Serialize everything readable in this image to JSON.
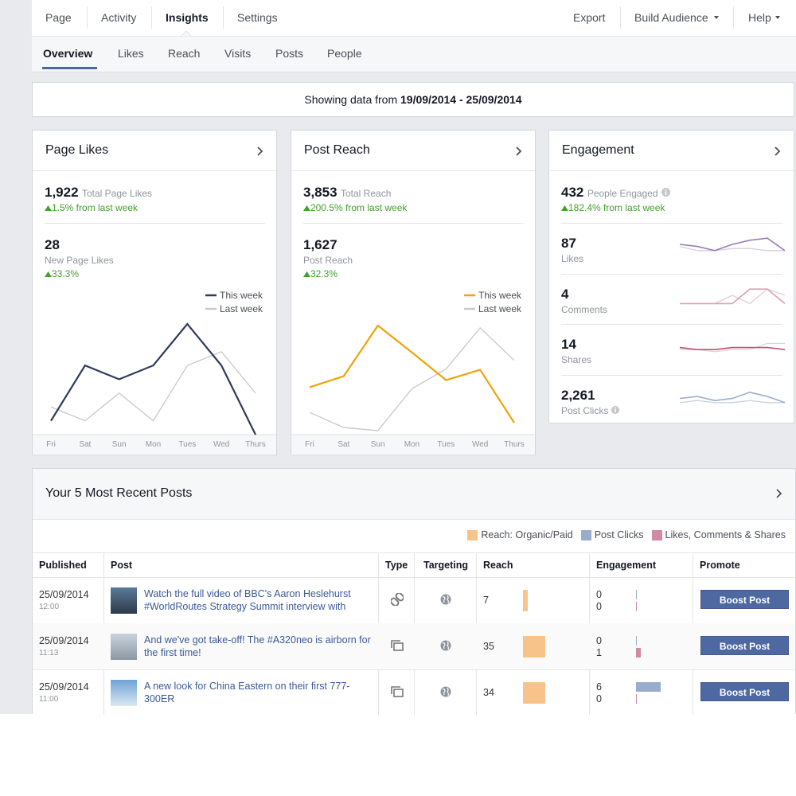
{
  "nav": {
    "tabs": [
      "Page",
      "Activity",
      "Insights",
      "Settings"
    ],
    "actions": [
      "Export",
      "Build Audience",
      "Help"
    ]
  },
  "subnav": {
    "tabs": [
      "Overview",
      "Likes",
      "Reach",
      "Visits",
      "Posts",
      "People"
    ]
  },
  "date_range": {
    "label": "Showing data from",
    "range": "19/09/2014 - 25/09/2014"
  },
  "page_likes": {
    "title": "Page Likes",
    "total": "1,922",
    "total_label": "Total Page Likes",
    "total_change": "1.5% from last week",
    "new": "28",
    "new_label": "New Page Likes",
    "new_change": "33.3%",
    "chart_data": {
      "type": "line",
      "categories": [
        "Fri",
        "Sat",
        "Sun",
        "Mon",
        "Tues",
        "Wed",
        "Thurs"
      ],
      "series": [
        {
          "name": "This week",
          "color": "#2f3b5c",
          "values": [
            1,
            5,
            4,
            5,
            8,
            5,
            0
          ]
        },
        {
          "name": "Last week",
          "color": "#c8c8c8",
          "values": [
            2,
            1,
            3,
            1,
            5,
            6,
            3
          ]
        }
      ],
      "ylim": [
        0,
        8
      ]
    }
  },
  "post_reach": {
    "title": "Post Reach",
    "total": "3,853",
    "total_label": "Total Reach",
    "total_change": "200.5% from last week",
    "new": "1,627",
    "new_label": "Post Reach",
    "new_change": "32.3%",
    "chart_data": {
      "type": "line",
      "categories": [
        "Fri",
        "Sat",
        "Sun",
        "Mon",
        "Tues",
        "Wed",
        "Thurs"
      ],
      "series": [
        {
          "name": "This week",
          "color": "#f0a30a",
          "values": [
            180,
            222,
            414,
            312,
            207,
            246,
            45
          ]
        },
        {
          "name": "Last week",
          "color": "#c8c8c8",
          "values": [
            84,
            27,
            15,
            174,
            249,
            405,
            282
          ]
        }
      ],
      "ylim": [
        0,
        420
      ]
    }
  },
  "engagement": {
    "title": "Engagement",
    "total": "432",
    "total_label": "People Engaged",
    "total_change": "182.4% from last week",
    "metrics": [
      {
        "value": "87",
        "label": "Likes",
        "chart_data": {
          "type": "line",
          "ylim": [
            0,
            10
          ],
          "series": [
            {
              "color": "#9b7bb8",
              "values": [
                5,
                4,
                2,
                5,
                7,
                8,
                2
              ]
            },
            {
              "color": "#d8cde4",
              "values": [
                4,
                2,
                2,
                3,
                3,
                2,
                2
              ]
            }
          ]
        }
      },
      {
        "value": "4",
        "label": "Comments",
        "chart_data": {
          "type": "line",
          "ylim": [
            0,
            10
          ],
          "series": [
            {
              "color": "#d9a0b6",
              "values": [
                1,
                1,
                1,
                1,
                8,
                8,
                1
              ]
            },
            {
              "color": "#ebcad6",
              "values": [
                1,
                1,
                1,
                5,
                1,
                8,
                5
              ]
            }
          ]
        }
      },
      {
        "value": "14",
        "label": "Shares",
        "chart_data": {
          "type": "line",
          "ylim": [
            0,
            10
          ],
          "series": [
            {
              "color": "#c0506e",
              "values": [
                4,
                3,
                3,
                4,
                4,
                4,
                3
              ]
            },
            {
              "color": "#d8d8d8",
              "values": [
                3,
                3,
                2,
                3,
                3,
                6,
                6
              ]
            }
          ]
        }
      },
      {
        "value": "2,261",
        "label": "Post Clicks",
        "chart_data": {
          "type": "line",
          "ylim": [
            0,
            10
          ],
          "series": [
            {
              "color": "#9aaccc",
              "values": [
                4,
                5,
                3,
                4,
                7,
                5,
                2
              ]
            },
            {
              "color": "#c9d2e3",
              "values": [
                2,
                3,
                2,
                2,
                3,
                2,
                2
              ]
            }
          ]
        }
      }
    ]
  },
  "recent_posts": {
    "title": "Your 5 Most Recent Posts",
    "legend": [
      {
        "name": "Reach: Organic/Paid",
        "color": "#f8c38a"
      },
      {
        "name": "Post Clicks",
        "color": "#9aaccc"
      },
      {
        "name": "Likes, Comments & Shares",
        "color": "#d08aa4"
      }
    ],
    "columns": [
      "Published",
      "Post",
      "Type",
      "Targeting",
      "Reach",
      "Engagement",
      "Promote"
    ],
    "rows": [
      {
        "date": "25/09/2014",
        "time": "12:00",
        "text": "Watch the full video of BBC's Aaron Heslehurst #WorldRoutes Strategy Summit interview with",
        "reach": 7,
        "clicks": 0,
        "interactions": 0,
        "button": "Boost Post"
      },
      {
        "date": "25/09/2014",
        "time": "11:13",
        "text": "And we've got take-off! The #A320neo is airborn for the first time!",
        "reach": 35,
        "clicks": 0,
        "interactions": 1,
        "button": "Boost Post"
      },
      {
        "date": "25/09/2014",
        "time": "11:00",
        "text": "A new look for China Eastern on their first 777-300ER",
        "reach": 34,
        "clicks": 6,
        "interactions": 0,
        "button": "Boost Post"
      }
    ]
  }
}
